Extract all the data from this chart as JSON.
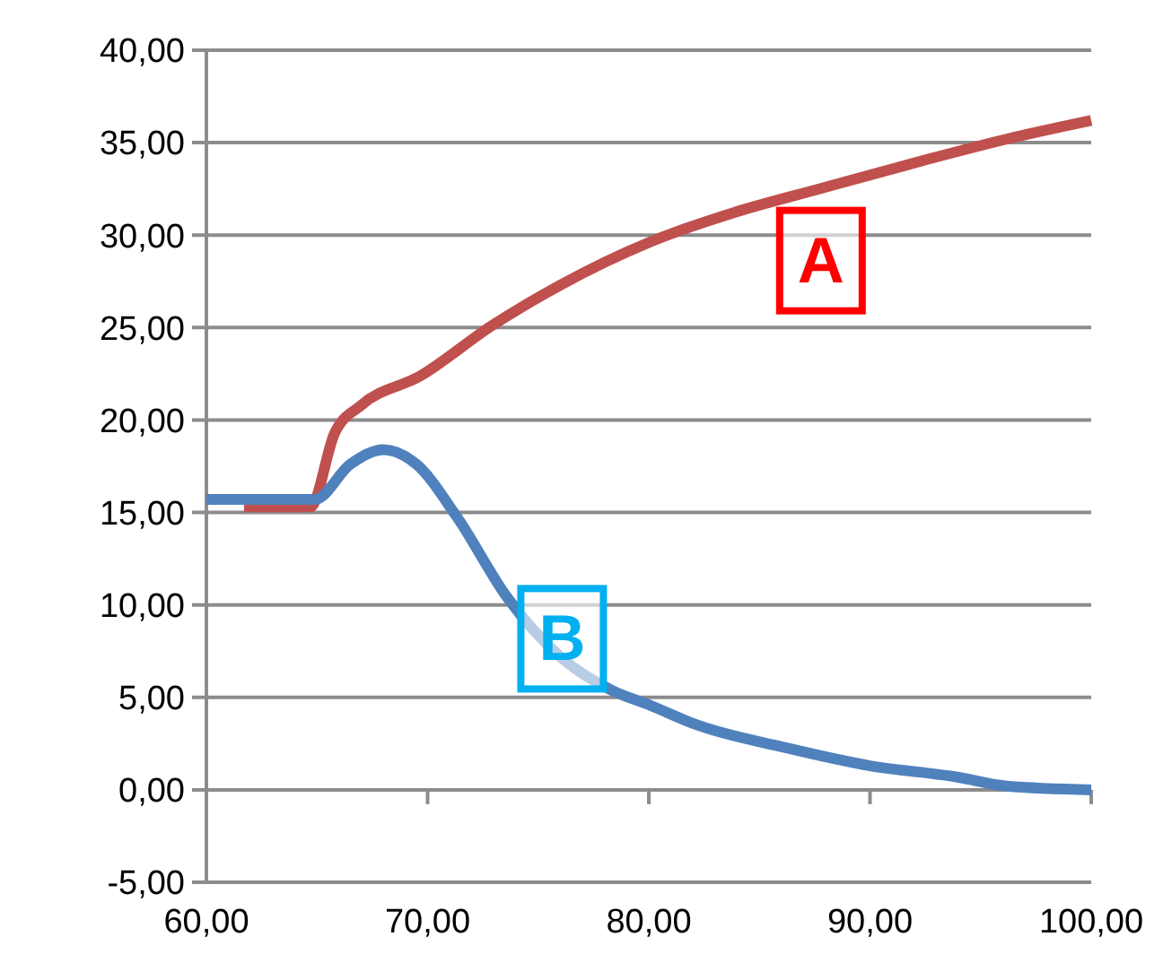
{
  "chart_data": {
    "type": "line",
    "xlim": [
      60,
      100
    ],
    "xticks": [
      {
        "value": 60,
        "label": "60,00"
      },
      {
        "value": 70,
        "label": "70,00"
      },
      {
        "value": 80,
        "label": "80,00"
      },
      {
        "value": 90,
        "label": "90,00"
      },
      {
        "value": 100,
        "label": "100,00"
      }
    ],
    "ylim": [
      -5,
      40
    ],
    "yticks": [
      {
        "value": -5,
        "label": "-5,00"
      },
      {
        "value": 0,
        "label": "0,00"
      },
      {
        "value": 5,
        "label": "5,00"
      },
      {
        "value": 10,
        "label": "10,00"
      },
      {
        "value": 15,
        "label": "15,00"
      },
      {
        "value": 20,
        "label": "20,00"
      },
      {
        "value": 25,
        "label": "25,00"
      },
      {
        "value": 30,
        "label": "30,00"
      },
      {
        "value": 35,
        "label": "35,00"
      },
      {
        "value": 40,
        "label": "40,00"
      }
    ],
    "grid": "y",
    "marker": "none",
    "line_style": "solid",
    "series": [
      {
        "name": "A",
        "color": "#c0504d",
        "x": [
          61.7,
          64.7,
          65.8,
          67.0,
          69.7,
          72.9,
          76.0,
          80.0,
          83.8,
          87.7,
          92.3,
          96.2,
          100
        ],
        "values": [
          15.3,
          15.3,
          19.3,
          20.8,
          22.4,
          25.1,
          27.3,
          29.6,
          31.2,
          32.5,
          34.0,
          35.2,
          36.2
        ]
      },
      {
        "name": "B",
        "color": "#4f81bd",
        "x": [
          60,
          64.9,
          66.5,
          68.0,
          69.5,
          71.3,
          73.6,
          76.0,
          78.3,
          80.0,
          82.2,
          86.1,
          90.0,
          93.9,
          96.2,
          100
        ],
        "values": [
          15.7,
          15.7,
          17.6,
          18.4,
          17.6,
          14.8,
          10.4,
          7.2,
          5.4,
          4.6,
          3.5,
          2.3,
          1.3,
          0.7,
          0.2,
          0
        ]
      }
    ]
  }
}
